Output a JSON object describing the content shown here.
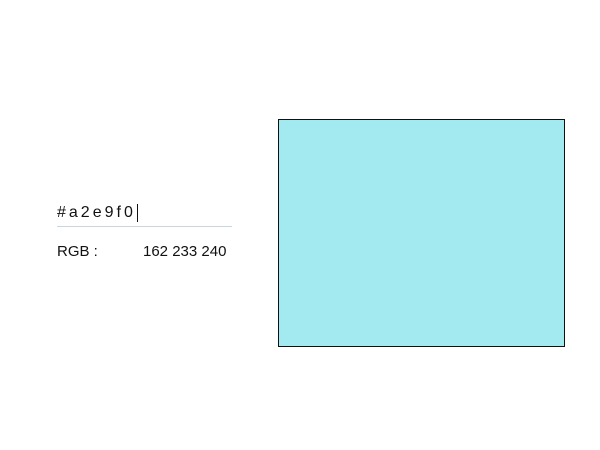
{
  "color_input": {
    "value": "#a2e9f0"
  },
  "rgb": {
    "label": "RGB :",
    "value": "162 233 240"
  },
  "swatch": {
    "color": "#a2e9f0"
  },
  "colors": {
    "text": "#111111",
    "input_underline": "#c9d6df",
    "swatch_border": "#111111"
  }
}
